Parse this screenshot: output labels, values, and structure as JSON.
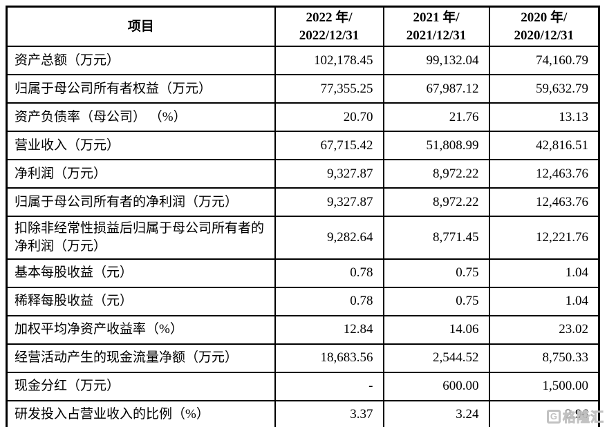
{
  "table": {
    "header": {
      "item_label": "项目",
      "periods": [
        "2022 年/\n2022/12/31",
        "2021 年/\n2021/12/31",
        "2020 年/\n2020/12/31"
      ]
    },
    "rows": [
      {
        "label": "资产总额（万元）",
        "values": [
          "102,178.45",
          "99,132.04",
          "74,160.79"
        ]
      },
      {
        "label": "归属于母公司所有者权益（万元）",
        "values": [
          "77,355.25",
          "67,987.12",
          "59,632.79"
        ]
      },
      {
        "label": "资产负债率（母公司） （%）",
        "values": [
          "20.70",
          "21.76",
          "13.13"
        ]
      },
      {
        "label": "营业收入（万元）",
        "values": [
          "67,715.42",
          "51,808.99",
          "42,816.51"
        ]
      },
      {
        "label": "净利润（万元）",
        "values": [
          "9,327.87",
          "8,972.22",
          "12,463.76"
        ]
      },
      {
        "label": "归属于母公司所有者的净利润（万元）",
        "values": [
          "9,327.87",
          "8,972.22",
          "12,463.76"
        ]
      },
      {
        "label": "扣除非经常性损益后归属于母公司所有者的净利润（万元）",
        "values": [
          "9,282.64",
          "8,771.45",
          "12,221.76"
        ]
      },
      {
        "label": "基本每股收益（元）",
        "values": [
          "0.78",
          "0.75",
          "1.04"
        ]
      },
      {
        "label": "稀释每股收益（元）",
        "values": [
          "0.78",
          "0.75",
          "1.04"
        ]
      },
      {
        "label": "加权平均净资产收益率（%）",
        "values": [
          "12.84",
          "14.06",
          "23.02"
        ]
      },
      {
        "label": "经营活动产生的现金流量净额（万元）",
        "values": [
          "18,683.56",
          "2,544.52",
          "8,750.33"
        ]
      },
      {
        "label": "现金分红（万元）",
        "values": [
          "-",
          "600.00",
          "1,500.00"
        ]
      },
      {
        "label": "研发投入占营业收入的比例（%）",
        "values": [
          "3.37",
          "3.24",
          "2.96"
        ]
      }
    ]
  },
  "watermark": {
    "logo": "G",
    "text": "格隆汇"
  }
}
